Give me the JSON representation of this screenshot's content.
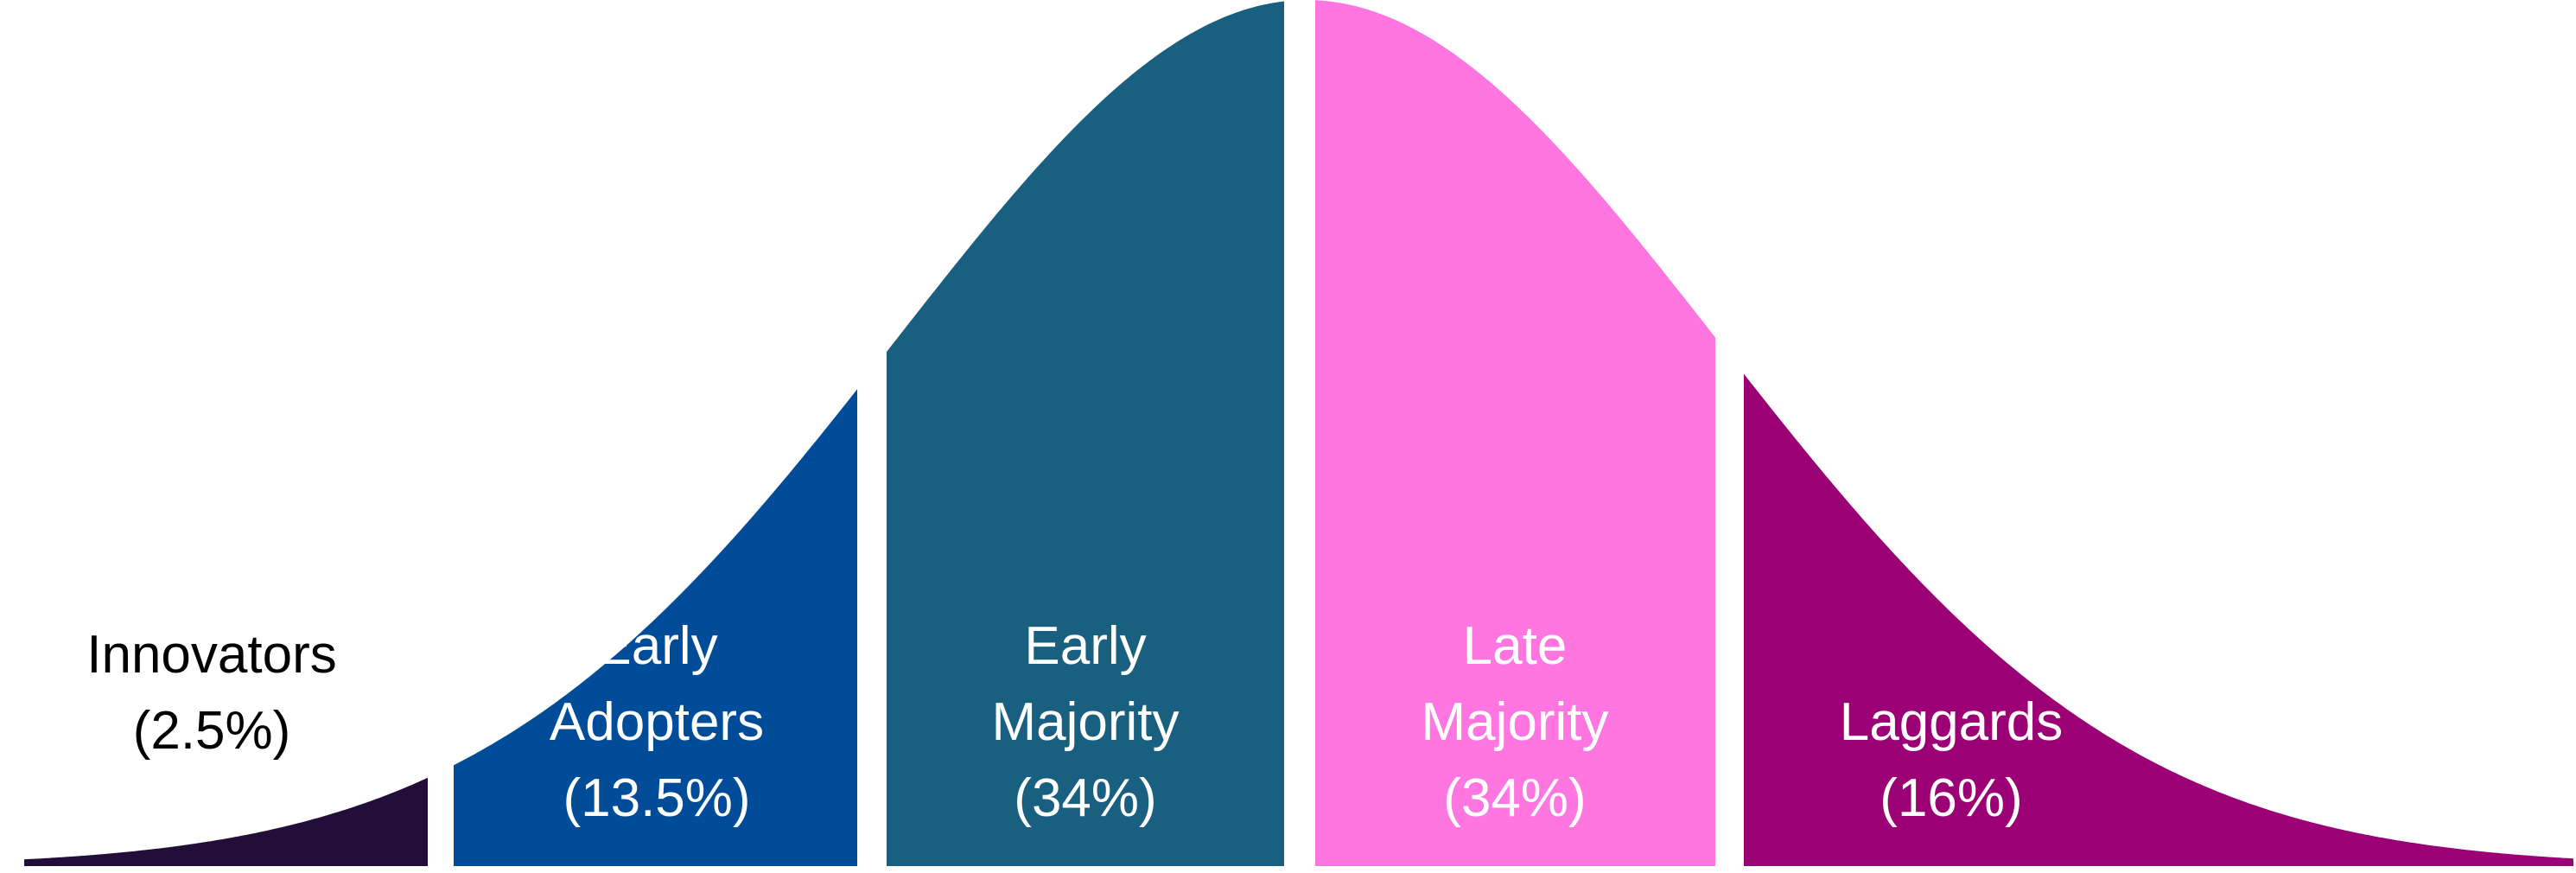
{
  "chart_data": {
    "type": "area",
    "description_free": true,
    "segments": [
      {
        "id": "innovators",
        "label_lines": [
          "Innovators",
          "(2.5%)"
        ],
        "share_percent": 2.5,
        "color": "#230e3a",
        "text_color": "#000000"
      },
      {
        "id": "early-adopters",
        "label_lines": [
          "Early",
          "Adopters",
          "(13.5%)"
        ],
        "share_percent": 13.5,
        "color": "#014c98",
        "text_color": "#ffffff"
      },
      {
        "id": "early-majority",
        "label_lines": [
          "Early",
          "Majority",
          "(34%)"
        ],
        "share_percent": 34,
        "color": "#185f80",
        "text_color": "#ffffff"
      },
      {
        "id": "late-majority",
        "label_lines": [
          "Late",
          "Majority",
          "(34%)"
        ],
        "share_percent": 34,
        "color": "#ff76e1",
        "text_color": "#ffffff"
      },
      {
        "id": "laggards",
        "label_lines": [
          "Laggards",
          "(16%)"
        ],
        "share_percent": 16,
        "color": "#9b0075",
        "text_color": "#ffffff"
      }
    ]
  }
}
